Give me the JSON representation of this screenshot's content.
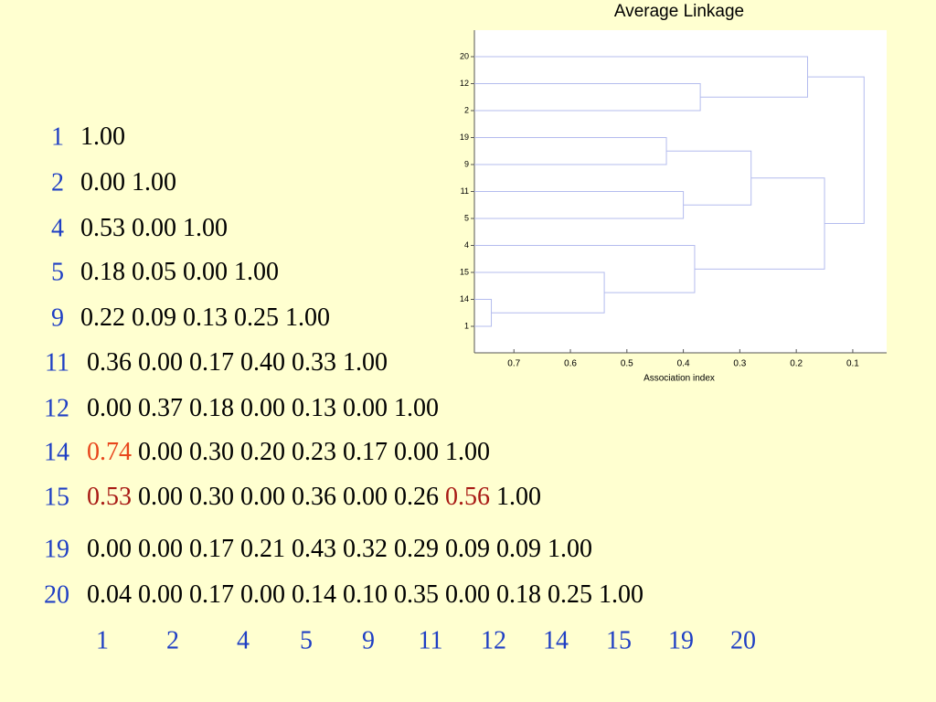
{
  "matrix": {
    "label_color": "#1f3fc4",
    "text_color": "#000000",
    "rows": [
      {
        "label": "1",
        "cells": [
          "1.00"
        ]
      },
      {
        "label": "2",
        "cells": [
          "0.00",
          "1.00"
        ]
      },
      {
        "label": "4",
        "cells": [
          "0.53",
          "0.00",
          "1.00"
        ]
      },
      {
        "label": "5",
        "cells": [
          "0.18",
          "0.05",
          "0.00",
          "1.00"
        ]
      },
      {
        "label": "9",
        "cells": [
          "0.22",
          "0.09",
          "0.13",
          "0.25",
          "1.00"
        ]
      },
      {
        "label": "11",
        "cells": [
          "0.36",
          "0.00",
          "0.17",
          "0.40",
          "0.33",
          "1.00"
        ]
      },
      {
        "label": "12",
        "cells": [
          "0.00",
          "0.37",
          "0.18",
          "0.00",
          "0.13",
          "0.00",
          "1.00"
        ]
      },
      {
        "label": "14",
        "cells": [
          {
            "text": "0.74",
            "color": "#e8461c"
          },
          "0.00",
          "0.30",
          "0.20",
          "0.23",
          "0.17",
          "0.00",
          "1.00"
        ]
      },
      {
        "label": "15",
        "cells": [
          {
            "text": "0.53",
            "color": "#a81a14"
          },
          "0.00",
          "0.30",
          "0.00",
          "0.36",
          "0.00",
          "0.26",
          {
            "text": "0.56",
            "color": "#a81a14"
          },
          "1.00"
        ]
      },
      {
        "label": "19",
        "cells": [
          "0.00",
          "0.00",
          "0.17",
          "0.21",
          "0.43",
          "0.32",
          "0.29",
          "0.09",
          "0.09",
          "1.00"
        ]
      },
      {
        "label": "20",
        "cells": [
          "0.04",
          "0.00",
          "0.17",
          "0.00",
          "0.14",
          "0.10",
          "0.35",
          "0.00",
          "0.18",
          "0.25",
          "1.00"
        ]
      }
    ],
    "columns": [
      "1",
      "2",
      "4",
      "5",
      "9",
      "11",
      "12",
      "14",
      "15",
      "19",
      "20"
    ]
  },
  "chart_data": {
    "type": "dendrogram",
    "title": "Average Linkage",
    "xlabel": "Association index",
    "color": "#b4bcee",
    "leaves": [
      "20",
      "12",
      "2",
      "19",
      "9",
      "11",
      "5",
      "4",
      "15",
      "14",
      "1"
    ],
    "merges": [
      {
        "children": [
          9,
          10
        ],
        "height": 0.74
      },
      {
        "children": [
          8,
          11
        ],
        "height": 0.54
      },
      {
        "children": [
          7,
          12
        ],
        "height": 0.38
      },
      {
        "children": [
          3,
          4
        ],
        "height": 0.43
      },
      {
        "children": [
          5,
          6
        ],
        "height": 0.4
      },
      {
        "children": [
          14,
          15
        ],
        "height": 0.28
      },
      {
        "children": [
          16,
          13
        ],
        "height": 0.15
      },
      {
        "children": [
          1,
          2
        ],
        "height": 0.37
      },
      {
        "children": [
          0,
          18
        ],
        "height": 0.18
      },
      {
        "children": [
          19,
          17
        ],
        "height": 0.08
      }
    ],
    "xlim": [
      0.77,
      0.04
    ],
    "xticks": [
      0.7,
      0.6,
      0.5,
      0.4,
      0.3,
      0.2,
      0.1
    ]
  }
}
